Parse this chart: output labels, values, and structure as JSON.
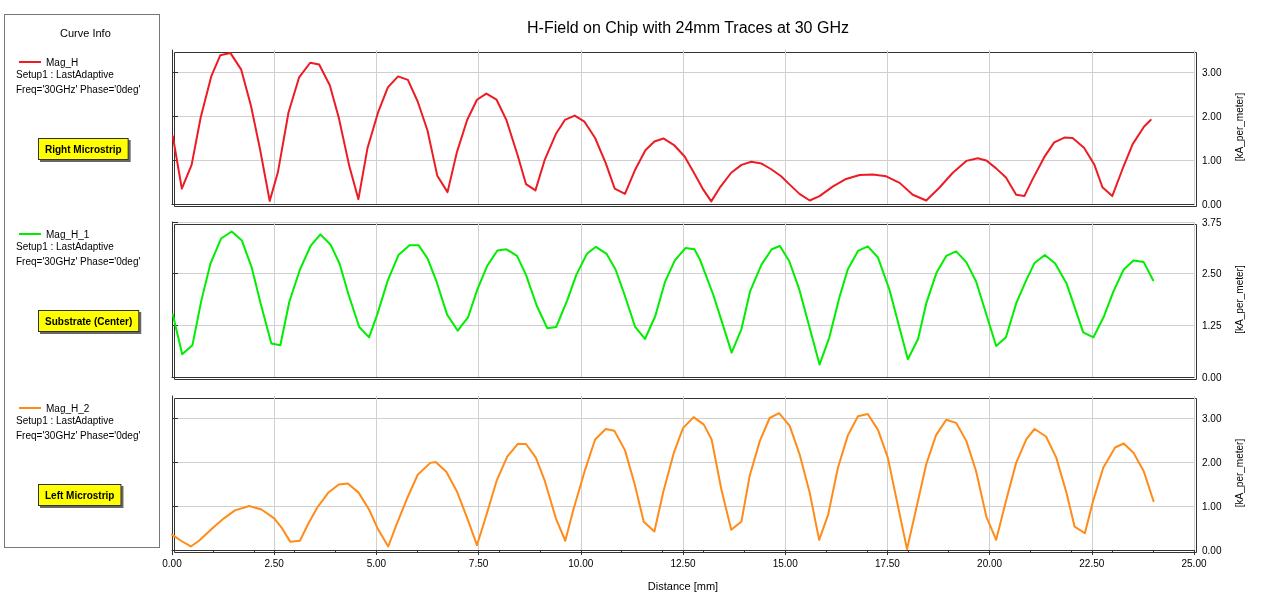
{
  "chart_data": [
    {
      "type": "line",
      "title": "H-Field on Chip with 24mm Traces at 30 GHz",
      "legend_title": "Curve Info",
      "ylabel": "[kA_per_meter]",
      "legend": "left",
      "grid": true,
      "tick_labels": "y",
      "annotations": [
        "Setup1 : LastAdaptive",
        "Freq='30GHz' Phase='0deg'",
        "Right Microstrip"
      ],
      "xlim": [
        0,
        25
      ],
      "xticks": [
        {
          "value": 0,
          "label": null
        },
        {
          "value": 2.5,
          "label": null
        },
        {
          "value": 5,
          "label": null
        },
        {
          "value": 7.5,
          "label": null
        },
        {
          "value": 10,
          "label": null
        },
        {
          "value": 12.5,
          "label": null
        },
        {
          "value": 15,
          "label": null
        },
        {
          "value": 17.5,
          "label": null
        },
        {
          "value": 20,
          "label": null
        },
        {
          "value": 22.5,
          "label": null
        },
        {
          "value": 25,
          "label": null
        }
      ],
      "ylim": [
        0,
        3.5
      ],
      "yticks": [
        {
          "value": 0,
          "label": "0.00"
        },
        {
          "value": 1,
          "label": "1.00"
        },
        {
          "value": 2,
          "label": "2.00"
        },
        {
          "value": 3,
          "label": "3.00"
        }
      ],
      "series": [
        {
          "name": "Mag_H",
          "color": "#ed1c24",
          "x": [
            0.02,
            0.24,
            0.48,
            0.7,
            0.96,
            1.18,
            1.43,
            1.69,
            1.93,
            2.15,
            2.39,
            2.59,
            2.85,
            3.11,
            3.38,
            3.6,
            3.86,
            4.08,
            4.34,
            4.56,
            4.78,
            5.04,
            5.28,
            5.53,
            5.77,
            6.01,
            6.25,
            6.49,
            6.74,
            6.97,
            7.22,
            7.46,
            7.69,
            7.94,
            8.18,
            8.46,
            8.66,
            8.89,
            9.12,
            9.39,
            9.61,
            9.85,
            10.09,
            10.35,
            10.61,
            10.83,
            11.08,
            11.32,
            11.58,
            11.8,
            12.02,
            12.28,
            12.54,
            12.76,
            12.98,
            13.19,
            13.4,
            13.68,
            13.93,
            14.17,
            14.42,
            14.66,
            14.9,
            15.11,
            15.35,
            15.6,
            15.84,
            16.17,
            16.49,
            16.82,
            17.14,
            17.47,
            17.8,
            18.12,
            18.45,
            18.77,
            19.1,
            19.43,
            19.71,
            19.92,
            20.16,
            20.4,
            20.65,
            20.85,
            21.05,
            21.34,
            21.58,
            21.83,
            22.03,
            22.31,
            22.56,
            22.76,
            23.0,
            23.25,
            23.5,
            23.78,
            23.94
          ],
          "values": [
            1.54,
            0.35,
            0.89,
            1.96,
            2.9,
            3.38,
            3.43,
            3.06,
            2.24,
            1.26,
            0.07,
            0.72,
            2.08,
            2.88,
            3.21,
            3.17,
            2.7,
            1.96,
            0.85,
            0.11,
            1.26,
            2.08,
            2.65,
            2.9,
            2.82,
            2.33,
            1.67,
            0.64,
            0.27,
            1.18,
            1.91,
            2.37,
            2.51,
            2.37,
            1.91,
            1.09,
            0.45,
            0.31,
            1.01,
            1.59,
            1.91,
            2.01,
            1.87,
            1.5,
            0.93,
            0.35,
            0.23,
            0.76,
            1.22,
            1.42,
            1.49,
            1.34,
            1.08,
            0.72,
            0.35,
            0.06,
            0.37,
            0.71,
            0.89,
            0.96,
            0.92,
            0.79,
            0.63,
            0.44,
            0.23,
            0.08,
            0.18,
            0.4,
            0.57,
            0.66,
            0.67,
            0.63,
            0.48,
            0.21,
            0.08,
            0.37,
            0.71,
            0.98,
            1.04,
            0.99,
            0.81,
            0.6,
            0.21,
            0.18,
            0.56,
            1.07,
            1.4,
            1.51,
            1.5,
            1.28,
            0.9,
            0.38,
            0.18,
            0.79,
            1.36,
            1.76,
            1.91
          ]
        }
      ]
    },
    {
      "type": "line",
      "ylabel": "[kA_per_meter]",
      "legend": "left",
      "grid": true,
      "tick_labels": "y",
      "annotations": [
        "Setup1 : LastAdaptive",
        "Freq='30GHz' Phase='0deg'",
        "Substrate (Center)"
      ],
      "xlim": [
        0,
        25
      ],
      "xticks": [
        {
          "value": 0,
          "label": null
        },
        {
          "value": 2.5,
          "label": null
        },
        {
          "value": 5,
          "label": null
        },
        {
          "value": 7.5,
          "label": null
        },
        {
          "value": 10,
          "label": null
        },
        {
          "value": 12.5,
          "label": null
        },
        {
          "value": 15,
          "label": null
        },
        {
          "value": 17.5,
          "label": null
        },
        {
          "value": 20,
          "label": null
        },
        {
          "value": 22.5,
          "label": null
        },
        {
          "value": 25,
          "label": null
        }
      ],
      "ylim": [
        0,
        3.75
      ],
      "yticks": [
        {
          "value": 0,
          "label": "0.00"
        },
        {
          "value": 1.25,
          "label": "1.25"
        },
        {
          "value": 2.5,
          "label": "2.50"
        },
        {
          "value": 3.75,
          "label": "3.75"
        }
      ],
      "series": [
        {
          "name": "Mag_H_1",
          "color": "#00ee00",
          "x": [
            0.02,
            0.25,
            0.5,
            0.72,
            0.94,
            1.2,
            1.46,
            1.71,
            1.95,
            2.17,
            2.43,
            2.65,
            2.87,
            3.13,
            3.39,
            3.63,
            3.88,
            4.1,
            4.32,
            4.58,
            4.82,
            5.02,
            5.28,
            5.54,
            5.81,
            6.03,
            6.25,
            6.46,
            6.73,
            6.99,
            7.24,
            7.47,
            7.71,
            7.96,
            8.18,
            8.44,
            8.66,
            8.92,
            9.18,
            9.4,
            9.67,
            9.89,
            10.15,
            10.37,
            10.63,
            10.85,
            11.07,
            11.33,
            11.57,
            11.82,
            12.06,
            12.3,
            12.56,
            12.78,
            12.91,
            13.24,
            13.44,
            13.69,
            13.93,
            14.14,
            14.42,
            14.67,
            14.87,
            15.1,
            15.35,
            15.84,
            16.08,
            16.33,
            16.53,
            16.78,
            17.02,
            17.27,
            17.55,
            18.0,
            18.25,
            18.45,
            18.7,
            18.94,
            19.18,
            19.43,
            19.67,
            20.16,
            20.4,
            20.65,
            20.9,
            21.1,
            21.35,
            21.6,
            21.88,
            22.29,
            22.54,
            22.79,
            23.03,
            23.28,
            23.52,
            23.77,
            24.0
          ],
          "values": [
            1.51,
            0.55,
            0.77,
            1.86,
            2.74,
            3.35,
            3.52,
            3.3,
            2.65,
            1.77,
            0.81,
            0.77,
            1.82,
            2.6,
            3.17,
            3.45,
            3.2,
            2.74,
            1.99,
            1.21,
            0.96,
            1.51,
            2.34,
            2.95,
            3.19,
            3.19,
            2.87,
            2.34,
            1.51,
            1.12,
            1.44,
            2.12,
            2.69,
            3.06,
            3.09,
            2.93,
            2.47,
            1.73,
            1.18,
            1.21,
            1.86,
            2.47,
            2.98,
            3.15,
            2.98,
            2.6,
            1.99,
            1.21,
            0.92,
            1.47,
            2.3,
            2.82,
            3.12,
            3.09,
            2.85,
            1.99,
            1.37,
            0.59,
            1.16,
            2.07,
            2.72,
            3.09,
            3.17,
            2.8,
            2.1,
            0.3,
            0.96,
            1.94,
            2.6,
            3.05,
            3.16,
            2.89,
            2.11,
            0.43,
            0.92,
            1.78,
            2.52,
            2.93,
            3.04,
            2.78,
            2.31,
            0.75,
            0.96,
            1.78,
            2.35,
            2.76,
            2.95,
            2.75,
            2.27,
            1.08,
            0.96,
            1.45,
            2.07,
            2.6,
            2.82,
            2.78,
            2.34
          ]
        }
      ]
    },
    {
      "type": "line",
      "xlabel": "Distance [mm]",
      "ylabel": "[kA_per_meter]",
      "legend": "left",
      "grid": true,
      "annotations": [
        "Setup1 : LastAdaptive",
        "Freq='30GHz' Phase='0deg'",
        "Left Microstrip"
      ],
      "xlim": [
        0,
        25
      ],
      "xticks": [
        {
          "value": 0,
          "label": "0.00"
        },
        {
          "value": 2.5,
          "label": "2.50"
        },
        {
          "value": 5,
          "label": "5.00"
        },
        {
          "value": 7.5,
          "label": "7.50"
        },
        {
          "value": 10,
          "label": "10.00"
        },
        {
          "value": 12.5,
          "label": "12.50"
        },
        {
          "value": 15,
          "label": "15.00"
        },
        {
          "value": 17.5,
          "label": "17.50"
        },
        {
          "value": 20,
          "label": "20.00"
        },
        {
          "value": 22.5,
          "label": "22.50"
        },
        {
          "value": 25,
          "label": "25.00"
        }
      ],
      "ylim": [
        0,
        3.5
      ],
      "yticks": [
        {
          "value": 0,
          "label": "0.00"
        },
        {
          "value": 1,
          "label": "1.00"
        },
        {
          "value": 2,
          "label": "2.00"
        },
        {
          "value": 3,
          "label": "3.00"
        }
      ],
      "series": [
        {
          "name": "Mag_H_2",
          "color": "#ff8c1a",
          "x": [
            0,
            0.22,
            0.46,
            0.66,
            1.01,
            1.27,
            1.54,
            1.89,
            2.19,
            2.5,
            2.68,
            2.89,
            3.13,
            3.33,
            3.55,
            3.82,
            4.08,
            4.3,
            4.56,
            4.82,
            5.04,
            5.29,
            5.48,
            5.75,
            6.01,
            6.32,
            6.45,
            6.71,
            6.97,
            7.24,
            7.46,
            7.68,
            7.94,
            8.2,
            8.46,
            8.66,
            8.9,
            9.12,
            9.39,
            9.62,
            9.82,
            10.09,
            10.35,
            10.61,
            10.82,
            11.08,
            11.32,
            11.54,
            11.8,
            12.02,
            12.28,
            12.5,
            12.76,
            13.01,
            13.2,
            13.44,
            13.68,
            13.93,
            14.13,
            14.38,
            14.62,
            14.85,
            15.11,
            15.35,
            15.6,
            15.83,
            16.05,
            16.29,
            16.53,
            16.78,
            17.02,
            17.27,
            17.51,
            17.76,
            17.98,
            18.2,
            18.45,
            18.69,
            18.94,
            19.18,
            19.43,
            19.67,
            19.92,
            20.16,
            20.41,
            20.65,
            20.9,
            21.1,
            21.38,
            21.63,
            21.88,
            22.08,
            22.33,
            22.53,
            22.78,
            23.07,
            23.28,
            23.52,
            23.77,
            24.01
          ],
          "values": [
            0.35,
            0.21,
            0.08,
            0.21,
            0.51,
            0.72,
            0.9,
            1.0,
            0.92,
            0.72,
            0.51,
            0.19,
            0.21,
            0.59,
            0.96,
            1.3,
            1.49,
            1.51,
            1.31,
            0.92,
            0.47,
            0.08,
            0.55,
            1.17,
            1.71,
            1.98,
            2.0,
            1.78,
            1.33,
            0.68,
            0.11,
            0.76,
            1.57,
            2.12,
            2.41,
            2.41,
            2.1,
            1.57,
            0.72,
            0.21,
            0.92,
            1.78,
            2.51,
            2.75,
            2.71,
            2.27,
            1.49,
            0.64,
            0.42,
            1.33,
            2.22,
            2.77,
            3.02,
            2.85,
            2.51,
            1.37,
            0.46,
            0.65,
            1.68,
            2.48,
            3.0,
            3.11,
            2.82,
            2.18,
            1.3,
            0.23,
            0.8,
            1.87,
            2.6,
            3.04,
            3.09,
            2.73,
            2.1,
            0.99,
            0.02,
            0.92,
            1.95,
            2.61,
            2.96,
            2.89,
            2.48,
            1.79,
            0.76,
            0.23,
            1.15,
            1.98,
            2.52,
            2.75,
            2.58,
            2.1,
            1.3,
            0.53,
            0.38,
            1.11,
            1.87,
            2.33,
            2.42,
            2.21,
            1.79,
            1.11
          ]
        }
      ]
    }
  ]
}
